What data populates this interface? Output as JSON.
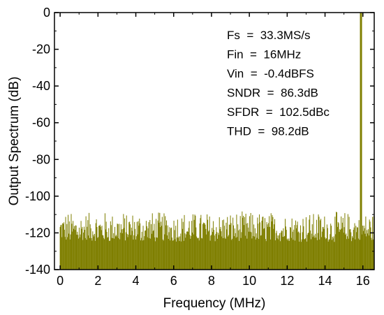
{
  "chart_data": {
    "type": "bar",
    "title": "",
    "xlabel": "Frequency (MHz)",
    "ylabel": "Output Spectrum (dB)",
    "xlim": [
      -0.3,
      16.6
    ],
    "ylim": [
      -140,
      0
    ],
    "xticks": [
      0,
      2,
      4,
      6,
      8,
      10,
      12,
      14,
      16
    ],
    "xtick_labels": [
      "0",
      "2",
      "4",
      "6",
      "8",
      "10",
      "12",
      "14",
      "16"
    ],
    "yticks": [
      0,
      -20,
      -40,
      -60,
      -80,
      -100,
      -120,
      -140
    ],
    "ytick_labels": [
      "0",
      "-20",
      "-40",
      "-60",
      "-80",
      "-100",
      "-120",
      "-140"
    ],
    "grid": false,
    "series_color": "#7f7f00",
    "noise_floor": {
      "min_db": -124,
      "max_db": -109,
      "bin_spacing_mhz": 0.0325,
      "bin_count": 512
    },
    "peak": {
      "x": 15.9,
      "y": 0
    },
    "annotations": [
      "Fs  =  33.3MS/s",
      "Fin  =  16MHz",
      "Vin  =  -0.4dBFS",
      "SNDR  =  86.3dB",
      "SFDR  =  102.5dBc",
      "THD  =  98.2dB"
    ]
  }
}
